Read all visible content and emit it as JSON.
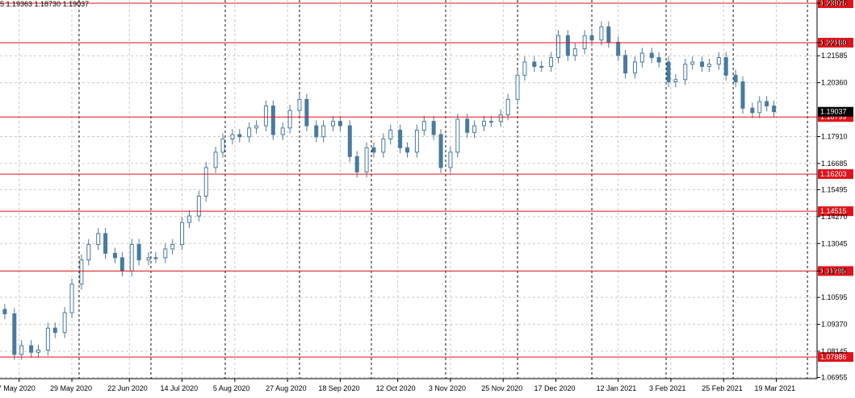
{
  "header": {
    "ohlc_text": "5 1.19363 1.18730 1.19037"
  },
  "colors": {
    "candle": "#4a7aa0",
    "level": "#e0131a",
    "grid": "#c9c9c9",
    "vline": "#111111",
    "current_price_box": "#000000"
  },
  "chart_data": {
    "type": "candlestick",
    "y_ticks": [
      "1.23975",
      "1.22180",
      "1.21585",
      "1.20360",
      "1.17910",
      "1.16685",
      "1.15495",
      "1.14270",
      "1.13045",
      "1.11795",
      "1.10595",
      "1.09370",
      "1.08145",
      "1.06955"
    ],
    "x_ticks": [
      "7 May 2020",
      "29 May 2020",
      "22 Jun 2020",
      "14 Jul 2020",
      "5 Aug 2020",
      "27 Aug 2020",
      "18 Sep 2020",
      "12 Oct 2020",
      "3 Nov 2020",
      "25 Nov 2020",
      "17 Dec 2020",
      "12 Jan 2021",
      "3 Feb 2021",
      "25 Feb 2021",
      "19 Mar 2021"
    ],
    "ylim": [
      1.069,
      1.2412
    ],
    "levels": [
      "1.23975",
      "1.22180",
      "1.18799",
      "1.16203",
      "1.14515",
      "1.11795",
      "1.07886"
    ],
    "current_price": "1.19037",
    "grid": true,
    "series": [
      {
        "date": "2020-05-01",
        "close": 1.0985
      },
      {
        "date": "2020-05-05",
        "close": 1.08
      },
      {
        "date": "2020-05-08",
        "close": 1.084
      },
      {
        "date": "2020-05-12",
        "close": 1.081
      },
      {
        "date": "2020-05-15",
        "close": 1.082
      },
      {
        "date": "2020-05-19",
        "close": 1.092
      },
      {
        "date": "2020-05-22",
        "close": 1.09
      },
      {
        "date": "2020-05-26",
        "close": 1.099
      },
      {
        "date": "2020-05-29",
        "close": 1.112
      },
      {
        "date": "2020-06-02",
        "close": 1.123
      },
      {
        "date": "2020-06-05",
        "close": 1.13
      },
      {
        "date": "2020-06-09",
        "close": 1.135
      },
      {
        "date": "2020-06-12",
        "close": 1.126
      },
      {
        "date": "2020-06-16",
        "close": 1.124
      },
      {
        "date": "2020-06-19",
        "close": 1.118
      },
      {
        "date": "2020-06-23",
        "close": 1.13
      },
      {
        "date": "2020-06-26",
        "close": 1.123
      },
      {
        "date": "2020-06-30",
        "close": 1.124
      },
      {
        "date": "2020-07-03",
        "close": 1.124
      },
      {
        "date": "2020-07-07",
        "close": 1.128
      },
      {
        "date": "2020-07-10",
        "close": 1.13
      },
      {
        "date": "2020-07-14",
        "close": 1.14
      },
      {
        "date": "2020-07-17",
        "close": 1.143
      },
      {
        "date": "2020-07-21",
        "close": 1.152
      },
      {
        "date": "2020-07-24",
        "close": 1.165
      },
      {
        "date": "2020-07-28",
        "close": 1.172
      },
      {
        "date": "2020-07-31",
        "close": 1.178
      },
      {
        "date": "2020-08-04",
        "close": 1.18
      },
      {
        "date": "2020-08-07",
        "close": 1.179
      },
      {
        "date": "2020-08-11",
        "close": 1.183
      },
      {
        "date": "2020-08-14",
        "close": 1.184
      },
      {
        "date": "2020-08-18",
        "close": 1.193
      },
      {
        "date": "2020-08-21",
        "close": 1.18
      },
      {
        "date": "2020-08-25",
        "close": 1.183
      },
      {
        "date": "2020-08-28",
        "close": 1.191
      },
      {
        "date": "2020-09-01",
        "close": 1.196
      },
      {
        "date": "2020-09-04",
        "close": 1.184
      },
      {
        "date": "2020-09-08",
        "close": 1.179
      },
      {
        "date": "2020-09-11",
        "close": 1.184
      },
      {
        "date": "2020-09-15",
        "close": 1.186
      },
      {
        "date": "2020-09-18",
        "close": 1.184
      },
      {
        "date": "2020-09-22",
        "close": 1.17
      },
      {
        "date": "2020-09-25",
        "close": 1.163
      },
      {
        "date": "2020-09-29",
        "close": 1.174
      },
      {
        "date": "2020-10-02",
        "close": 1.172
      },
      {
        "date": "2020-10-06",
        "close": 1.178
      },
      {
        "date": "2020-10-09",
        "close": 1.182
      },
      {
        "date": "2020-10-13",
        "close": 1.174
      },
      {
        "date": "2020-10-16",
        "close": 1.172
      },
      {
        "date": "2020-10-20",
        "close": 1.182
      },
      {
        "date": "2020-10-23",
        "close": 1.186
      },
      {
        "date": "2020-10-27",
        "close": 1.18
      },
      {
        "date": "2020-10-30",
        "close": 1.165
      },
      {
        "date": "2020-11-03",
        "close": 1.172
      },
      {
        "date": "2020-11-06",
        "close": 1.187
      },
      {
        "date": "2020-11-10",
        "close": 1.181
      },
      {
        "date": "2020-11-13",
        "close": 1.184
      },
      {
        "date": "2020-11-17",
        "close": 1.186
      },
      {
        "date": "2020-11-20",
        "close": 1.186
      },
      {
        "date": "2020-11-24",
        "close": 1.189
      },
      {
        "date": "2020-11-27",
        "close": 1.196
      },
      {
        "date": "2020-12-01",
        "close": 1.207
      },
      {
        "date": "2020-12-04",
        "close": 1.213
      },
      {
        "date": "2020-12-08",
        "close": 1.211
      },
      {
        "date": "2020-12-11",
        "close": 1.211
      },
      {
        "date": "2020-12-15",
        "close": 1.215
      },
      {
        "date": "2020-12-18",
        "close": 1.225
      },
      {
        "date": "2020-12-22",
        "close": 1.216
      },
      {
        "date": "2020-12-25",
        "close": 1.219
      },
      {
        "date": "2020-12-29",
        "close": 1.225
      },
      {
        "date": "2021-01-01",
        "close": 1.223
      },
      {
        "date": "2021-01-05",
        "close": 1.229
      },
      {
        "date": "2021-01-08",
        "close": 1.222
      },
      {
        "date": "2021-01-12",
        "close": 1.216
      },
      {
        "date": "2021-01-15",
        "close": 1.208
      },
      {
        "date": "2021-01-19",
        "close": 1.213
      },
      {
        "date": "2021-01-22",
        "close": 1.217
      },
      {
        "date": "2021-01-26",
        "close": 1.215
      },
      {
        "date": "2021-01-29",
        "close": 1.213
      },
      {
        "date": "2021-02-02",
        "close": 1.204
      },
      {
        "date": "2021-02-05",
        "close": 1.205
      },
      {
        "date": "2021-02-09",
        "close": 1.212
      },
      {
        "date": "2021-02-12",
        "close": 1.213
      },
      {
        "date": "2021-02-16",
        "close": 1.211
      },
      {
        "date": "2021-02-19",
        "close": 1.212
      },
      {
        "date": "2021-02-23",
        "close": 1.215
      },
      {
        "date": "2021-02-26",
        "close": 1.207
      },
      {
        "date": "2021-03-02",
        "close": 1.204
      },
      {
        "date": "2021-03-05",
        "close": 1.192
      },
      {
        "date": "2021-03-09",
        "close": 1.19
      },
      {
        "date": "2021-03-12",
        "close": 1.195
      },
      {
        "date": "2021-03-15",
        "close": 1.193
      },
      {
        "date": "2021-03-18",
        "close": 1.1904
      }
    ]
  }
}
